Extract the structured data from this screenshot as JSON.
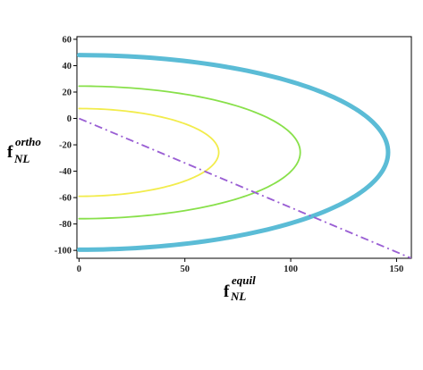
{
  "chart_data": {
    "type": "line",
    "title": "",
    "xlabel": {
      "main": "f",
      "sub": "NL",
      "sup": "equil"
    },
    "ylabel": {
      "main": "f",
      "sub": "NL",
      "sup": "ortho"
    },
    "xlim": [
      -1,
      157
    ],
    "ylim": [
      -106,
      62
    ],
    "xticks": [
      0,
      50,
      100,
      150
    ],
    "yticks": [
      60,
      40,
      20,
      0,
      -20,
      -40,
      -60,
      -80,
      -100
    ],
    "grid": false,
    "legend": "none",
    "series": [
      {
        "kind": "half-ellipse",
        "color": "#5bbcd6",
        "width": 5,
        "center": [
          0,
          -25.7
        ],
        "x_extent": 146,
        "y_top": 48,
        "y_bottom": -99.5
      },
      {
        "kind": "half-ellipse",
        "color": "#88e04a",
        "width": 1.8,
        "center": [
          0,
          -25.7
        ],
        "x_extent": 104.5,
        "y_top": 24.5,
        "y_bottom": -76
      },
      {
        "kind": "half-ellipse",
        "color": "#f2ec4c",
        "width": 1.8,
        "center": [
          0,
          -25.7
        ],
        "x_extent": 66,
        "y_top": 7.5,
        "y_bottom": -59
      },
      {
        "kind": "line",
        "color": "#9a5fd4",
        "width": 1.8,
        "dash": "dashdot",
        "x": [
          0,
          157
        ],
        "y": [
          0,
          -106
        ]
      }
    ]
  }
}
